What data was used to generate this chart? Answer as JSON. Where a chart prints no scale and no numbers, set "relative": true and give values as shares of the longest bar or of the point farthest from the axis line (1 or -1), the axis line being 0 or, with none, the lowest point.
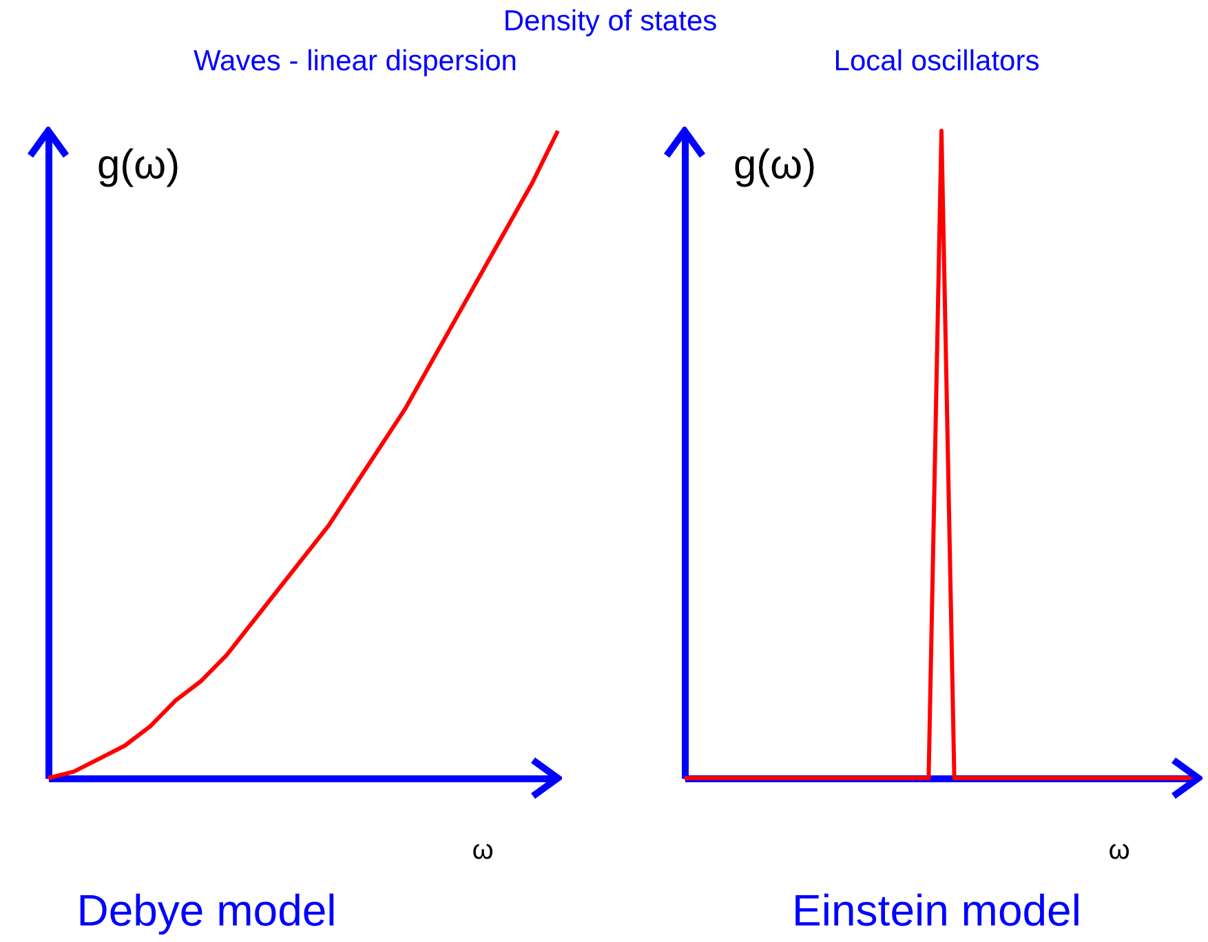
{
  "chart_data": [
    {
      "type": "line",
      "title": "Density of states",
      "subtitle": "Waves - linear dispersion",
      "xlabel": "ω",
      "ylabel": "g(ω)",
      "relative": true,
      "categories": [
        null,
        null,
        null,
        null,
        null,
        null,
        null,
        null,
        null,
        null,
        null,
        null,
        null,
        null,
        null,
        null,
        null,
        null,
        null,
        null,
        null
      ],
      "series": [
        {
          "color": "#ff0000",
          "values": [
            0,
            0.01,
            0.03,
            0.05,
            0.08,
            0.12,
            0.15,
            0.19,
            0.24,
            0.29,
            0.34,
            0.39,
            0.45,
            0.51,
            0.57,
            0.64,
            0.71,
            0.78,
            0.85,
            0.92,
            1
          ]
        }
      ],
      "annotations": [
        "Debye model"
      ]
    },
    {
      "type": "line",
      "subtitle": "Local oscillators",
      "xlabel": "ω",
      "ylabel": "g(ω)",
      "relative": true,
      "categories": [
        null,
        null,
        null,
        null,
        null,
        null,
        null,
        null,
        null,
        null,
        null,
        null,
        null,
        null,
        null,
        null,
        null,
        null,
        null,
        null,
        null,
        null,
        null,
        null,
        null,
        null,
        null,
        null,
        null,
        null,
        null,
        null,
        null,
        null,
        null,
        null,
        null,
        null,
        null,
        null,
        null
      ],
      "series": [
        {
          "color": "#ff0000",
          "values": [
            0,
            0,
            0,
            0,
            0,
            0,
            0,
            0,
            0,
            0,
            0,
            0,
            0,
            0,
            0,
            0,
            0,
            0,
            0,
            0,
            1,
            0,
            0,
            0,
            0,
            0,
            0,
            0,
            0,
            0,
            0,
            0,
            0,
            0,
            0,
            0,
            0,
            0,
            0,
            0,
            0
          ]
        }
      ],
      "annotations": [
        "Einstein model"
      ]
    }
  ]
}
